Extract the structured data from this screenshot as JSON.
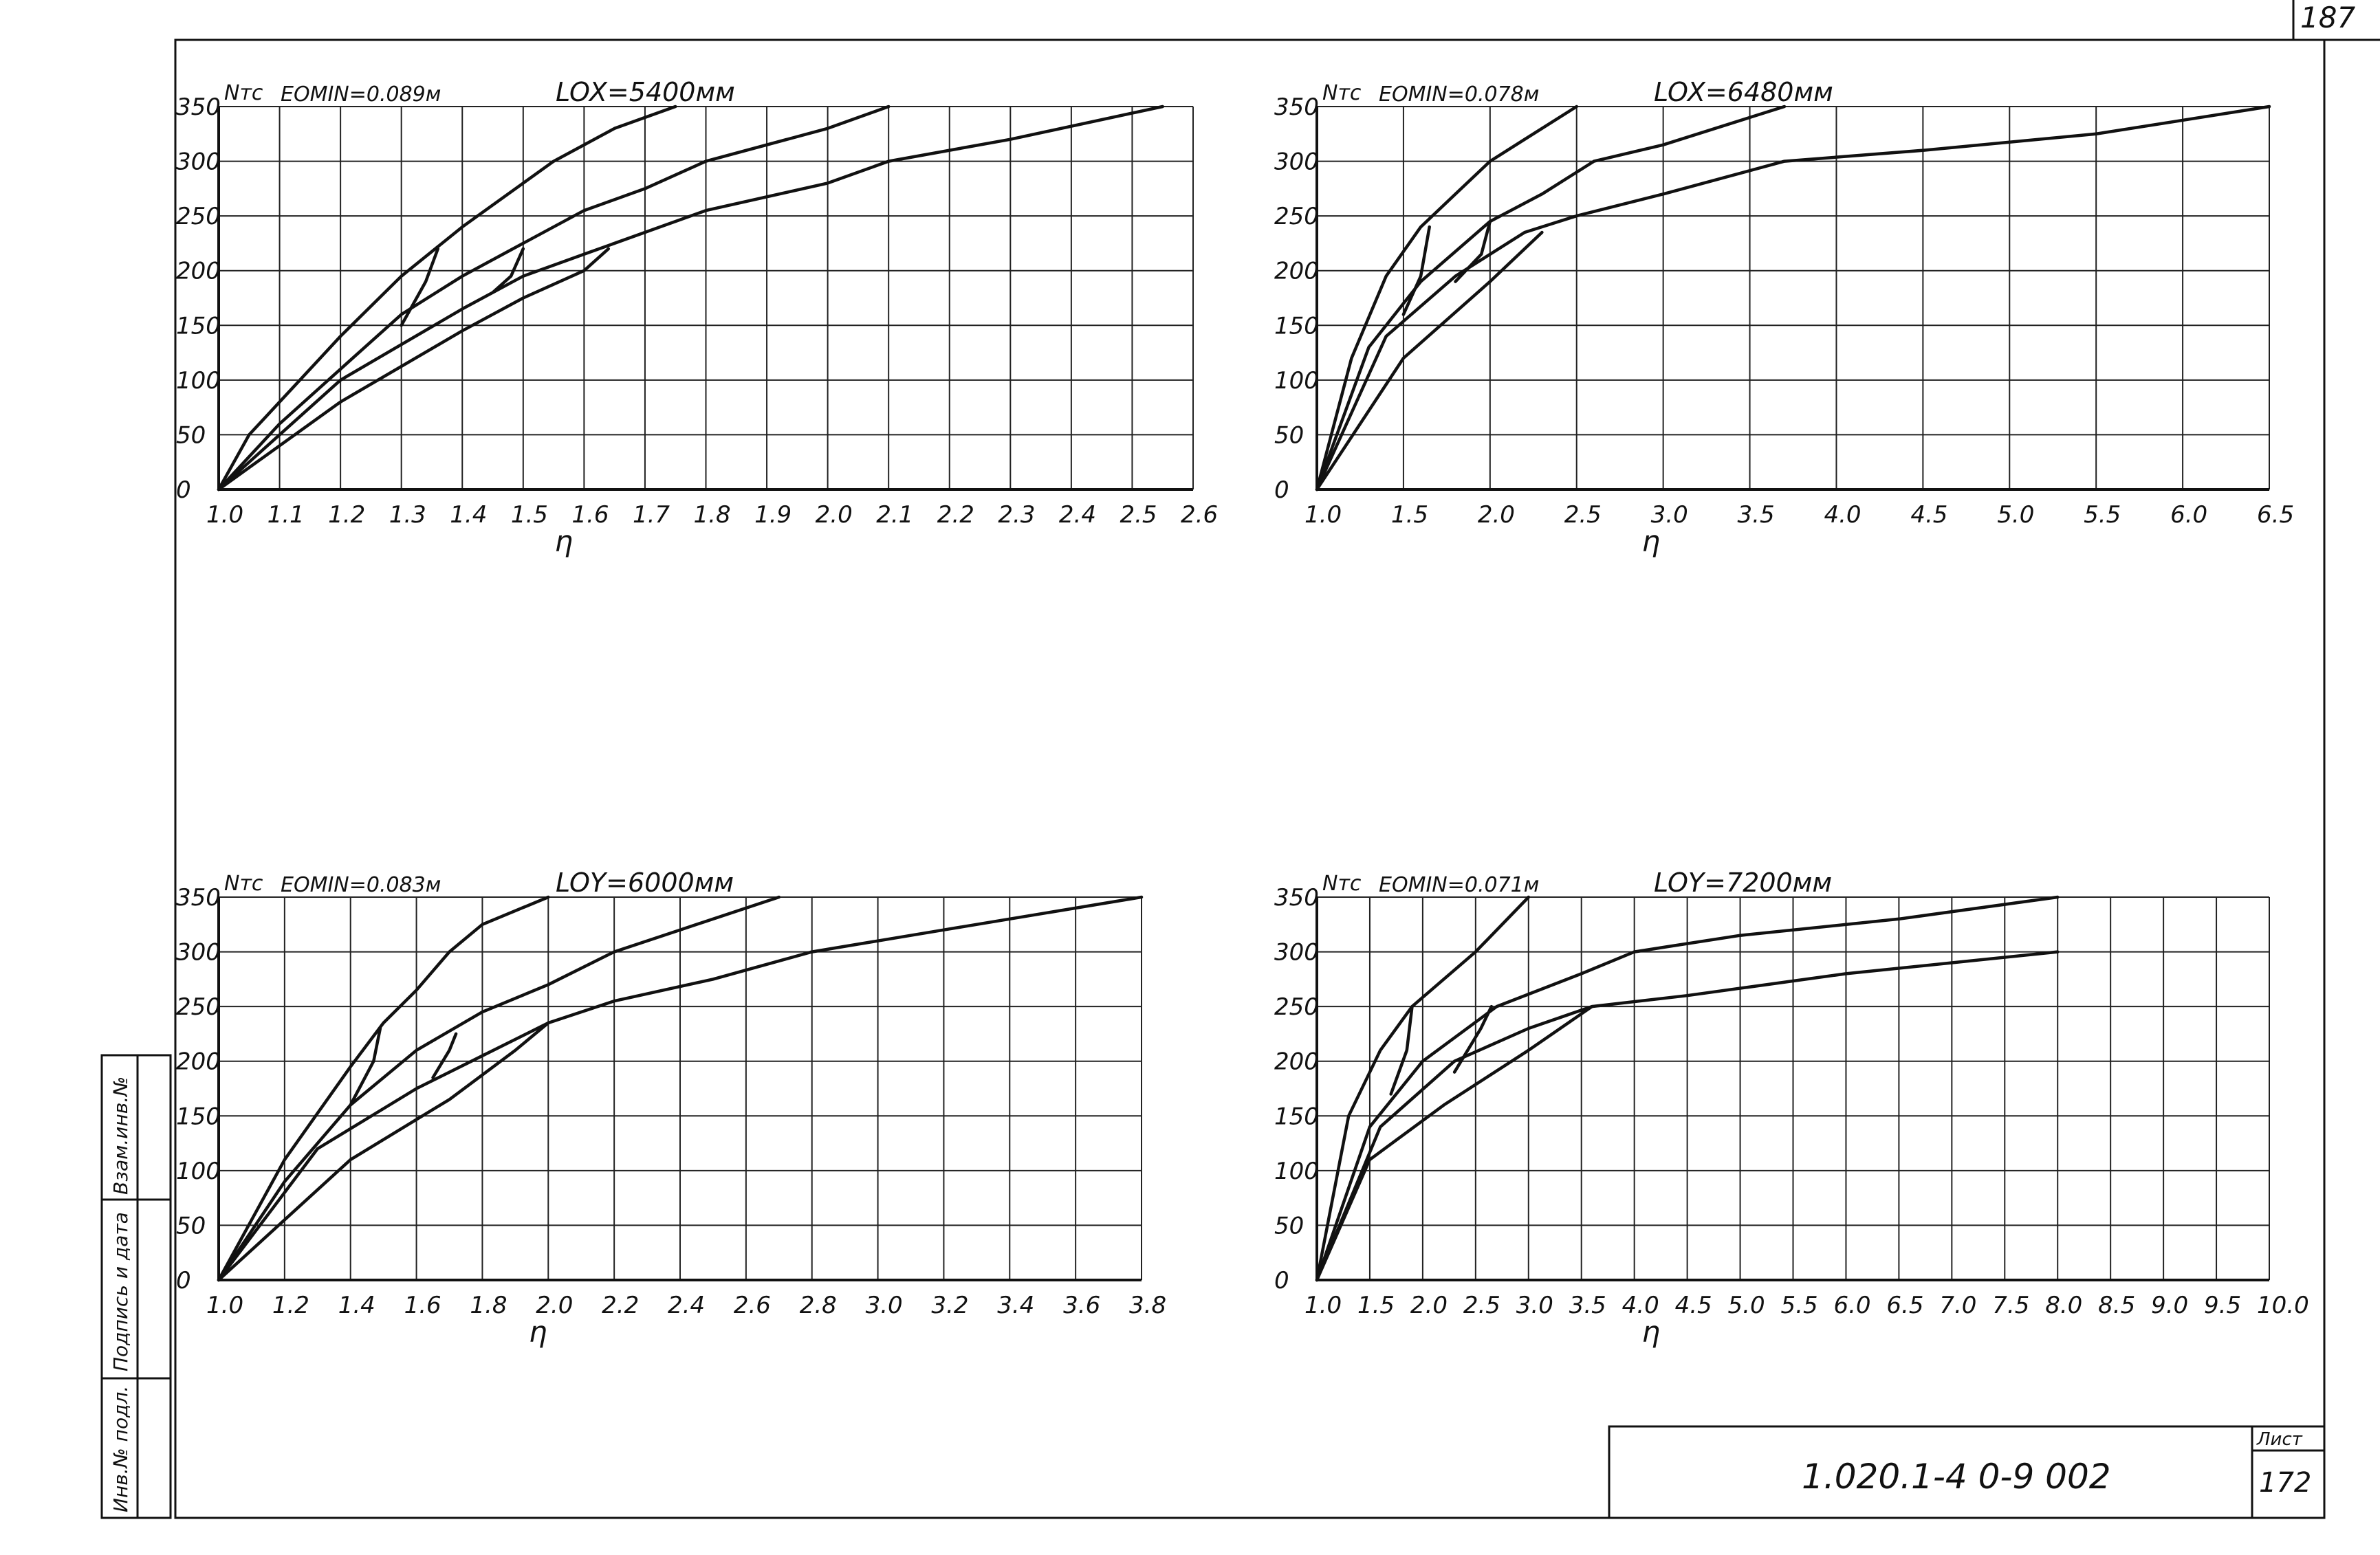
{
  "sheet": {
    "page_number": "187",
    "doc_code": "1.020.1-4   0-9  002",
    "list_label": "Лист",
    "list_number": "172",
    "side_stamp": [
      "Инв.№ подл.",
      "Подпись и дата",
      "Взам.инв.№"
    ]
  },
  "chart_data": [
    {
      "type": "line",
      "header_left": "Nтс",
      "header_mid": "EOMIN=0.089м",
      "header_right": "LOX=5400мм",
      "xlabel": "η",
      "xlim": [
        1.0,
        2.6
      ],
      "ylim": [
        0,
        350
      ],
      "grid": true,
      "x_ticks": [
        "1.0",
        "1.1",
        "1.2",
        "1.3",
        "1.4",
        "1.5",
        "1.6",
        "1.7",
        "1.8",
        "1.9",
        "2.0",
        "2.1",
        "2.2",
        "2.3",
        "2.4",
        "2.5",
        "2.6"
      ],
      "y_ticks": [
        "0",
        "50",
        "100",
        "150",
        "200",
        "250",
        "300",
        "350"
      ],
      "series": [
        {
          "x": [
            1.0,
            1.05,
            1.1,
            1.2,
            1.3,
            1.4,
            1.5,
            1.55,
            1.65,
            1.75
          ],
          "y": [
            0,
            50,
            80,
            140,
            195,
            240,
            280,
            300,
            330,
            350
          ]
        },
        {
          "x": [
            1.0,
            1.1,
            1.2,
            1.3,
            1.4,
            1.5,
            1.6,
            1.7,
            1.8,
            2.0,
            2.1
          ],
          "y": [
            0,
            60,
            110,
            160,
            195,
            225,
            255,
            275,
            300,
            330,
            350
          ]
        },
        {
          "x": [
            1.0,
            1.2,
            1.4,
            1.5,
            1.6,
            1.7,
            1.8,
            2.0,
            2.1,
            2.3,
            2.55
          ],
          "y": [
            0,
            100,
            165,
            195,
            215,
            235,
            255,
            280,
            300,
            320,
            350
          ]
        },
        {
          "x": [
            1.0,
            1.2,
            1.4,
            1.5,
            1.6,
            1.64
          ],
          "y": [
            0,
            80,
            145,
            175,
            200,
            220
          ]
        },
        {
          "x": [
            1.3,
            1.34,
            1.36
          ],
          "y": [
            150,
            190,
            220
          ]
        },
        {
          "x": [
            1.45,
            1.48,
            1.5
          ],
          "y": [
            180,
            195,
            220
          ]
        }
      ]
    },
    {
      "type": "line",
      "header_left": "Nтс",
      "header_mid": "EOMIN=0.078м",
      "header_right": "LOX=6480мм",
      "xlabel": "η",
      "xlim": [
        1.0,
        6.5
      ],
      "ylim": [
        0,
        350
      ],
      "grid": true,
      "x_ticks": [
        "1.0",
        "1.5",
        "2.0",
        "2.5",
        "3.0",
        "3.5",
        "4.0",
        "4.5",
        "5.0",
        "5.5",
        "6.0",
        "6.5"
      ],
      "y_ticks": [
        "0",
        "50",
        "100",
        "150",
        "200",
        "250",
        "300",
        "350"
      ],
      "series": [
        {
          "x": [
            1.0,
            1.2,
            1.4,
            1.6,
            1.8,
            2.0,
            2.2,
            2.5
          ],
          "y": [
            0,
            120,
            195,
            240,
            270,
            300,
            320,
            350
          ]
        },
        {
          "x": [
            1.0,
            1.3,
            1.6,
            2.0,
            2.3,
            2.6,
            3.0,
            3.5,
            3.7
          ],
          "y": [
            0,
            130,
            190,
            245,
            270,
            300,
            315,
            340,
            350
          ]
        },
        {
          "x": [
            1.0,
            1.4,
            1.8,
            2.2,
            2.5,
            3.0,
            3.7,
            4.5,
            5.5,
            6.5
          ],
          "y": [
            0,
            140,
            195,
            235,
            250,
            270,
            300,
            310,
            325,
            350
          ]
        },
        {
          "x": [
            1.0,
            1.5,
            2.0,
            2.3
          ],
          "y": [
            0,
            120,
            190,
            235
          ]
        },
        {
          "x": [
            1.5,
            1.6,
            1.65
          ],
          "y": [
            160,
            195,
            240
          ]
        },
        {
          "x": [
            1.8,
            1.95,
            2.0
          ],
          "y": [
            190,
            215,
            245
          ]
        }
      ]
    },
    {
      "type": "line",
      "header_left": "Nтс",
      "header_mid": "EOMIN=0.083м",
      "header_right": "LOY=6000мм",
      "xlabel": "η",
      "xlim": [
        1.0,
        3.8
      ],
      "ylim": [
        0,
        350
      ],
      "grid": true,
      "x_ticks": [
        "1.0",
        "1.2",
        "1.4",
        "1.6",
        "1.8",
        "2.0",
        "2.2",
        "2.4",
        "2.6",
        "2.8",
        "3.0",
        "3.2",
        "3.4",
        "3.6",
        "3.8"
      ],
      "y_ticks": [
        "0",
        "50",
        "100",
        "150",
        "200",
        "250",
        "300",
        "350"
      ],
      "series": [
        {
          "x": [
            1.0,
            1.2,
            1.4,
            1.5,
            1.6,
            1.7,
            1.8,
            2.0
          ],
          "y": [
            0,
            110,
            195,
            235,
            265,
            300,
            325,
            350
          ]
        },
        {
          "x": [
            1.0,
            1.2,
            1.4,
            1.6,
            1.8,
            2.0,
            2.2,
            2.4,
            2.7
          ],
          "y": [
            0,
            90,
            160,
            210,
            245,
            270,
            300,
            320,
            350
          ]
        },
        {
          "x": [
            1.0,
            1.3,
            1.6,
            1.8,
            2.0,
            2.2,
            2.5,
            2.8,
            3.2,
            3.8
          ],
          "y": [
            0,
            120,
            175,
            205,
            235,
            255,
            275,
            300,
            320,
            350
          ]
        },
        {
          "x": [
            1.0,
            1.4,
            1.7,
            1.9,
            2.0
          ],
          "y": [
            0,
            110,
            165,
            210,
            235
          ]
        },
        {
          "x": [
            1.4,
            1.47,
            1.49
          ],
          "y": [
            160,
            200,
            230
          ]
        },
        {
          "x": [
            1.65,
            1.7,
            1.72
          ],
          "y": [
            185,
            210,
            225
          ]
        }
      ]
    },
    {
      "type": "line",
      "header_left": "Nтс",
      "header_mid": "EOMIN=0.071м",
      "header_right": "LOY=7200мм",
      "xlabel": "η",
      "xlim": [
        1.0,
        10.0
      ],
      "ylim": [
        0,
        350
      ],
      "grid": true,
      "x_ticks": [
        "1.0",
        "1.5",
        "2.0",
        "2.5",
        "3.0",
        "3.5",
        "4.0",
        "4.5",
        "5.0",
        "5.5",
        "6.0",
        "6.5",
        "7.0",
        "7.5",
        "8.0",
        "8.5",
        "9.0",
        "9.5",
        "10.0"
      ],
      "y_ticks": [
        "0",
        "50",
        "100",
        "150",
        "200",
        "250",
        "300",
        "350"
      ],
      "series": [
        {
          "x": [
            1.0,
            1.3,
            1.6,
            1.9,
            2.5,
            3.0
          ],
          "y": [
            0,
            150,
            210,
            250,
            300,
            350
          ]
        },
        {
          "x": [
            1.0,
            1.5,
            2.0,
            2.7,
            3.5,
            4.0,
            5.0,
            6.5,
            8.0
          ],
          "y": [
            0,
            140,
            200,
            250,
            280,
            300,
            315,
            330,
            350
          ]
        },
        {
          "x": [
            1.0,
            1.6,
            2.3,
            3.0,
            3.6,
            4.5,
            6.0,
            8.0
          ],
          "y": [
            0,
            140,
            200,
            230,
            250,
            260,
            280,
            300
          ]
        },
        {
          "x": [
            1.0,
            1.5,
            2.2,
            3.0,
            3.6
          ],
          "y": [
            0,
            110,
            160,
            210,
            250
          ]
        },
        {
          "x": [
            1.7,
            1.85,
            1.9
          ],
          "y": [
            170,
            210,
            250
          ]
        },
        {
          "x": [
            2.3,
            2.55,
            2.65
          ],
          "y": [
            190,
            230,
            250
          ]
        }
      ]
    }
  ]
}
